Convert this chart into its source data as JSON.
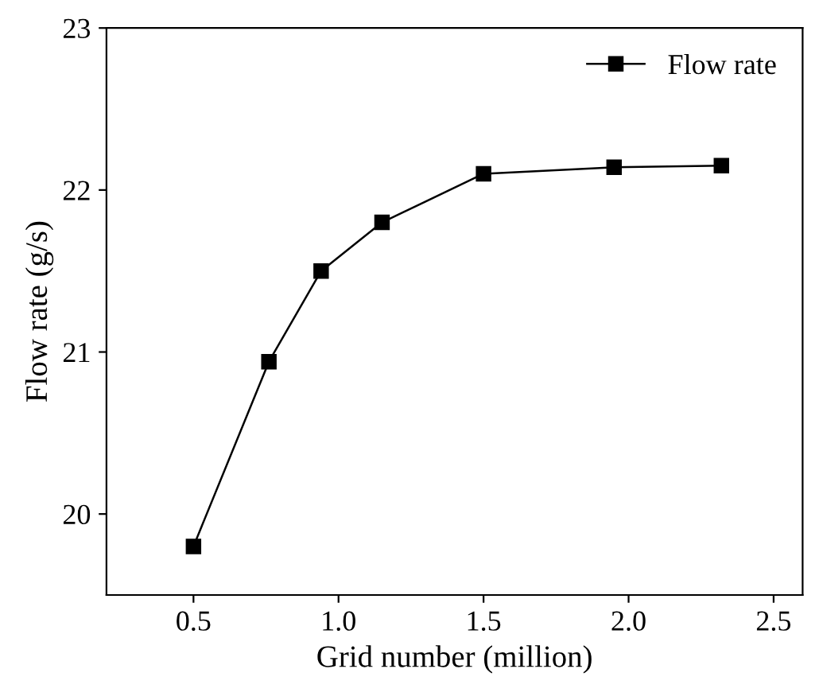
{
  "chart_data": {
    "type": "line",
    "xlabel": "Grid number (million)",
    "ylabel": "Flow rate (g/s)",
    "x": [
      0.5,
      0.76,
      0.94,
      1.15,
      1.5,
      1.95,
      2.32
    ],
    "series": [
      {
        "name": "Flow rate",
        "color": "#000000",
        "values": [
          19.8,
          20.94,
          21.5,
          21.8,
          22.1,
          22.14,
          22.15
        ]
      }
    ],
    "xlim": [
      0.2,
      2.6
    ],
    "xticks": [
      {
        "value": 0.5,
        "label": "0.5"
      },
      {
        "value": 1.0,
        "label": "1.0"
      },
      {
        "value": 1.5,
        "label": "1.5"
      },
      {
        "value": 2.0,
        "label": "2.0"
      },
      {
        "value": 2.5,
        "label": "2.5"
      }
    ],
    "ylim": [
      19.5,
      23
    ],
    "yticks": [
      20,
      21,
      22,
      23
    ],
    "marker": "square",
    "line_style": "solid",
    "legend": "top right",
    "grid": false
  }
}
